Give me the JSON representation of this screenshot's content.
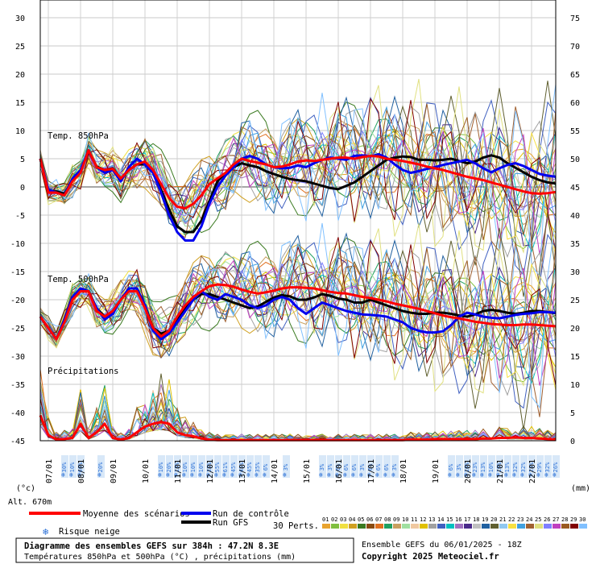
{
  "chart_data": {
    "type": "line",
    "dates": [
      "07/01",
      "08/01",
      "09/01",
      "10/01",
      "11/01",
      "12/01",
      "13/01",
      "14/01",
      "15/01",
      "16/01",
      "17/01",
      "18/01",
      "19/01",
      "20/01",
      "21/01",
      "22/01"
    ],
    "left_ticks": [
      "30",
      "25",
      "20",
      "15",
      "10",
      "5",
      "0",
      "-5",
      "-10",
      "-15",
      "-20",
      "-25",
      "-30",
      "-35",
      "-40",
      "-45"
    ],
    "right_ticks": [
      "75",
      "70",
      "65",
      "60",
      "55",
      "50",
      "45",
      "40",
      "35",
      "30",
      "25",
      "20",
      "15",
      "10",
      "5",
      "0"
    ],
    "left_unit": "(°c)",
    "right_unit": "(mm)",
    "altitude": "Alt. 670m",
    "panel_labels": {
      "t850": "Temp. 850hPa",
      "t500": "Temp. 500hPa",
      "precip": "Précipitations"
    },
    "series": [
      {
        "name": "Moyenne des scénarios",
        "panel": "t850",
        "color": "#ff0000",
        "x": [
          0,
          1,
          2,
          3,
          4,
          5,
          6,
          7,
          8,
          9,
          10,
          11,
          12,
          13,
          14,
          15,
          16,
          17,
          18,
          19,
          20,
          21,
          22,
          23,
          24,
          25,
          26,
          27,
          28,
          29,
          30,
          31,
          32,
          33,
          34,
          35,
          36,
          37,
          38,
          39,
          40,
          41,
          42,
          43,
          44,
          45,
          46,
          47,
          48,
          49,
          50,
          51,
          52,
          53,
          54,
          55,
          56,
          57,
          58,
          59,
          60,
          61,
          62,
          63,
          64
        ],
        "y": [
          5,
          -1,
          -1,
          -1.5,
          1,
          2.5,
          6.5,
          3.5,
          3,
          3.2,
          1.5,
          3,
          4,
          4.5,
          3,
          0.5,
          -2,
          -3.5,
          -3.8,
          -3,
          -1.5,
          0.5,
          1.5,
          2.5,
          4,
          5,
          4.6,
          4.3,
          4,
          3.5,
          3.6,
          4,
          4.5,
          4.7,
          4.6,
          4.8,
          5,
          5.2,
          5.2,
          5,
          5.3,
          5.5,
          5.4,
          5,
          4.8,
          4.6,
          4.3,
          4,
          3.6,
          3.3,
          3,
          2.6,
          2.2,
          1.8,
          1.5,
          1.2,
          0.8,
          0.4,
          0,
          -0.4,
          -0.8,
          -1.1,
          -1.2,
          -1.1,
          -0.9
        ]
      },
      {
        "name": "Run de contrôle",
        "panel": "t850",
        "color": "#0000ee",
        "x": [
          0,
          1,
          2,
          3,
          4,
          5,
          6,
          7,
          8,
          9,
          10,
          11,
          12,
          13,
          14,
          15,
          16,
          17,
          18,
          19,
          20,
          21,
          22,
          23,
          24,
          25,
          26,
          27,
          28,
          29,
          30,
          31,
          32,
          33,
          34,
          35,
          36,
          37,
          38,
          39,
          40,
          41,
          42,
          43,
          44,
          45,
          46,
          47,
          48,
          49,
          50,
          51,
          52,
          53,
          54,
          55,
          56,
          57,
          58,
          59,
          60,
          61,
          62,
          63,
          64
        ],
        "y": [
          5,
          -0.5,
          -1,
          -1.5,
          1.5,
          3,
          6.5,
          3.5,
          2.5,
          3,
          1,
          3.5,
          5,
          4,
          2.5,
          -1,
          -5,
          -8,
          -9.5,
          -9.5,
          -7,
          -3,
          0,
          2,
          3.5,
          5,
          5.5,
          5,
          4,
          3.5,
          3.3,
          3.4,
          3.8,
          3.5,
          4.2,
          4.8,
          5.2,
          5,
          4.8,
          5.5,
          5.6,
          5.4,
          5.8,
          5.2,
          4,
          3,
          2.5,
          2.8,
          3.2,
          3.5,
          3.9,
          4.2,
          4.5,
          4.8,
          4.2,
          3.3,
          2.6,
          3.3,
          3.9,
          4.2,
          3.7,
          3,
          2.3,
          2,
          1.8
        ]
      },
      {
        "name": "Run GFS",
        "panel": "t850",
        "color": "#000000",
        "x": [
          0,
          1,
          2,
          3,
          4,
          5,
          6,
          7,
          8,
          9,
          10,
          11,
          12,
          13,
          14,
          15,
          16,
          17,
          18,
          19,
          20,
          21,
          22,
          23,
          24,
          25,
          26,
          27,
          28,
          29,
          30,
          31,
          32,
          33,
          34,
          35,
          36,
          37,
          38,
          39,
          40,
          41,
          42,
          43,
          44,
          45,
          46,
          47,
          48,
          49,
          50,
          51,
          52,
          53,
          54,
          55,
          56,
          57,
          58,
          59,
          60,
          61,
          62,
          63,
          64
        ],
        "y": [
          5,
          -0.8,
          -0.8,
          -1.2,
          1.2,
          2.8,
          6.3,
          3.6,
          3,
          3.3,
          1.5,
          3,
          4,
          4,
          2.5,
          -0.5,
          -4,
          -7,
          -8,
          -8,
          -6,
          -2.5,
          1,
          2.5,
          3.5,
          4.2,
          3.8,
          3.5,
          2.8,
          2.3,
          1.8,
          1.4,
          1.2,
          1,
          0.6,
          0.2,
          -0.2,
          -0.4,
          0.2,
          0.8,
          1.8,
          2.8,
          3.8,
          4.8,
          5.2,
          5.4,
          5.3,
          4.8,
          4.8,
          4.7,
          4.8,
          5,
          4.6,
          4.2,
          4.5,
          5.2,
          5.6,
          5.2,
          4.2,
          3.4,
          2.6,
          1.8,
          1.2,
          0.8,
          0.6
        ]
      },
      {
        "name": "Moyenne des scénarios",
        "panel": "t500",
        "color": "#ff0000",
        "x": [
          0,
          1,
          2,
          3,
          4,
          5,
          6,
          7,
          8,
          9,
          10,
          11,
          12,
          13,
          14,
          15,
          16,
          17,
          18,
          19,
          20,
          21,
          22,
          23,
          24,
          25,
          26,
          27,
          28,
          29,
          30,
          31,
          32,
          33,
          34,
          35,
          36,
          37,
          38,
          39,
          40,
          41,
          42,
          43,
          44,
          45,
          46,
          47,
          48,
          49,
          50,
          51,
          52,
          53,
          54,
          55,
          56,
          57,
          58,
          59,
          60,
          61,
          62,
          63,
          64
        ],
        "y": [
          -23,
          -25,
          -27,
          -24,
          -20,
          -18.5,
          -18.5,
          -22,
          -23,
          -22,
          -20,
          -18.5,
          -18.5,
          -21.5,
          -25,
          -26.5,
          -25.5,
          -23,
          -21,
          -19.5,
          -18.5,
          -17.6,
          -17.3,
          -17.4,
          -17.7,
          -18.2,
          -18.6,
          -18.9,
          -18.7,
          -18.4,
          -18,
          -17.8,
          -17.8,
          -17.9,
          -18,
          -18.3,
          -18.6,
          -18.8,
          -18.9,
          -19.2,
          -19.5,
          -19.7,
          -20,
          -20.3,
          -20.7,
          -21,
          -21.3,
          -21.6,
          -22,
          -22.4,
          -22.8,
          -23.1,
          -23.3,
          -23.6,
          -23.9,
          -24.1,
          -24.3,
          -24.4,
          -24.5,
          -24.5,
          -24.4,
          -24.4,
          -24.5,
          -24.6,
          -24.7
        ]
      },
      {
        "name": "Run de contrôle",
        "panel": "t500",
        "color": "#0000ee",
        "x": [
          0,
          1,
          2,
          3,
          4,
          5,
          6,
          7,
          8,
          9,
          10,
          11,
          12,
          13,
          14,
          15,
          16,
          17,
          18,
          19,
          20,
          21,
          22,
          23,
          24,
          25,
          26,
          27,
          28,
          29,
          30,
          31,
          32,
          33,
          34,
          35,
          36,
          37,
          38,
          39,
          40,
          41,
          42,
          43,
          44,
          45,
          46,
          47,
          48,
          49,
          50,
          51,
          52,
          53,
          54,
          55,
          56,
          57,
          58,
          59,
          60,
          61,
          62,
          63,
          64
        ],
        "y": [
          -23,
          -25,
          -27,
          -23.5,
          -19.5,
          -18,
          -18.5,
          -21.5,
          -23.5,
          -22.5,
          -20,
          -18,
          -18,
          -21,
          -25.5,
          -27,
          -26,
          -24,
          -22,
          -20,
          -18.5,
          -19.5,
          -20,
          -19,
          -19.5,
          -20,
          -21,
          -21.5,
          -21,
          -20,
          -19.5,
          -20,
          -21.5,
          -22.5,
          -21.5,
          -20.5,
          -21,
          -21.5,
          -22,
          -22.3,
          -22.6,
          -22.7,
          -22.8,
          -23,
          -23.5,
          -24,
          -25,
          -25.5,
          -25.8,
          -25.8,
          -25.6,
          -24.5,
          -23,
          -22.3,
          -22.6,
          -23,
          -23.2,
          -23.3,
          -23,
          -22.7,
          -22.5,
          -22.4,
          -22.2,
          -22.2,
          -22.3
        ]
      },
      {
        "name": "Run GFS",
        "panel": "t500",
        "color": "#000000",
        "x": [
          0,
          1,
          2,
          3,
          4,
          5,
          6,
          7,
          8,
          9,
          10,
          11,
          12,
          13,
          14,
          15,
          16,
          17,
          18,
          19,
          20,
          21,
          22,
          23,
          24,
          25,
          26,
          27,
          28,
          29,
          30,
          31,
          32,
          33,
          34,
          35,
          36,
          37,
          38,
          39,
          40,
          41,
          42,
          43,
          44,
          45,
          46,
          47,
          48,
          49,
          50,
          51,
          52,
          53,
          54,
          55,
          56,
          57,
          58,
          59,
          60,
          61,
          62,
          63,
          64
        ],
        "y": [
          -23,
          -25,
          -27,
          -23.5,
          -19.5,
          -18,
          -18.5,
          -21.5,
          -23,
          -22,
          -20,
          -18,
          -18,
          -21,
          -25,
          -26,
          -25.5,
          -23.5,
          -21.5,
          -20,
          -19,
          -19,
          -19.5,
          -20,
          -20.5,
          -21,
          -21.5,
          -21.2,
          -20.4,
          -19.6,
          -19.2,
          -19.4,
          -20,
          -20,
          -19.6,
          -19,
          -19.3,
          -19.8,
          -20,
          -20.5,
          -20.5,
          -20,
          -20.5,
          -21,
          -21.5,
          -22,
          -22.3,
          -22.5,
          -22.5,
          -22.3,
          -22.3,
          -22.5,
          -22.8,
          -23,
          -22.6,
          -22,
          -21.8,
          -22,
          -22.3,
          -22.5,
          -22.3,
          -22,
          -22,
          -22.2,
          -22.4
        ]
      },
      {
        "name": "Moyenne des scénarios",
        "panel": "precip",
        "color": "#ff0000",
        "x": [
          0,
          1,
          2,
          3,
          4,
          5,
          6,
          7,
          8,
          9,
          10,
          11,
          12,
          13,
          14,
          15,
          16,
          17,
          18,
          19,
          20,
          21,
          22,
          23,
          24,
          25,
          26,
          27,
          28,
          29,
          30,
          31,
          32,
          33,
          34,
          35,
          36,
          37,
          38,
          39,
          40,
          41,
          42,
          43,
          44,
          45,
          46,
          47,
          48,
          49,
          50,
          51,
          52,
          53,
          54,
          55,
          56,
          57,
          58,
          59,
          60,
          61,
          62,
          63,
          64
        ],
        "y": [
          4.5,
          1,
          0.2,
          0.3,
          0.5,
          3,
          0.5,
          1.5,
          3,
          0.5,
          0.2,
          0.5,
          1.5,
          2.5,
          3,
          3.3,
          3,
          1.5,
          1,
          0.8,
          0.4,
          0.2,
          0.1,
          0.1,
          0.1,
          0.1,
          0.1,
          0.1,
          0.1,
          0.1,
          0.1,
          0.1,
          0.1,
          0.1,
          0.1,
          0.1,
          0.1,
          0.1,
          0.1,
          0.1,
          0.1,
          0.1,
          0.1,
          0.1,
          0.1,
          0.1,
          0.2,
          0.2,
          0.2,
          0.3,
          0.3,
          0.3,
          0.3,
          0.3,
          0.3,
          0.4,
          0.4,
          0.5,
          0.5,
          0.6,
          0.5,
          0.5,
          0.4,
          0.3,
          0.2
        ]
      }
    ],
    "perturbation_colors": [
      "#e8a32e",
      "#7fbf3f",
      "#f0e040",
      "#d0a020",
      "#3a7a20",
      "#8a4a10",
      "#e07020",
      "#20a060",
      "#c8a060",
      "#a0e0a0",
      "#f0c8a0",
      "#e0c000",
      "#a0a0a0",
      "#4060c0",
      "#00c0c0",
      "#a070c0",
      "#4a2a8a",
      "#c0c0c0",
      "#2060a0",
      "#606030",
      "#90c8f0",
      "#f8e040",
      "#40a0e0",
      "#a06030",
      "#e0e080",
      "#8080ff",
      "#c040c0",
      "#9a5a20",
      "#800000",
      "#80c0ff"
    ],
    "snow_risk": [
      {
        "x": 3,
        "label": "30%"
      },
      {
        "x": 4,
        "label": "10%"
      },
      {
        "x": 5,
        "label": "60%"
      },
      {
        "x": 7.5,
        "label": "20%"
      },
      {
        "x": 15,
        "label": "10%"
      },
      {
        "x": 16,
        "label": "20%"
      },
      {
        "x": 17,
        "label": "13%"
      },
      {
        "x": 18,
        "label": "10%"
      },
      {
        "x": 19,
        "label": "10%"
      },
      {
        "x": 20,
        "label": "10%"
      },
      {
        "x": 21,
        "label": "32%"
      },
      {
        "x": 22,
        "label": "55%"
      },
      {
        "x": 23,
        "label": "61%"
      },
      {
        "x": 24,
        "label": "45%"
      },
      {
        "x": 25,
        "label": "45%"
      },
      {
        "x": 26,
        "label": "45%"
      },
      {
        "x": 27,
        "label": "35%"
      },
      {
        "x": 28,
        "label": "6%"
      },
      {
        "x": 30.5,
        "label": "3%"
      },
      {
        "x": 35,
        "label": "3%"
      },
      {
        "x": 36,
        "label": "3%"
      },
      {
        "x": 37,
        "label": "6%"
      },
      {
        "x": 38,
        "label": "6%"
      },
      {
        "x": 39,
        "label": "6%"
      },
      {
        "x": 40,
        "label": "3%"
      },
      {
        "x": 41,
        "label": "6%"
      },
      {
        "x": 42,
        "label": "6%"
      },
      {
        "x": 43,
        "label": "6%"
      },
      {
        "x": 44,
        "label": "3%"
      },
      {
        "x": 51,
        "label": "6%"
      },
      {
        "x": 52,
        "label": "3%"
      },
      {
        "x": 53,
        "label": "10%"
      },
      {
        "x": 54,
        "label": "23%"
      },
      {
        "x": 55,
        "label": "13%"
      },
      {
        "x": 56,
        "label": "10%"
      },
      {
        "x": 57,
        "label": "19%"
      },
      {
        "x": 58,
        "label": "13%"
      },
      {
        "x": 59,
        "label": "32%"
      },
      {
        "x": 60,
        "label": "32%"
      },
      {
        "x": 61,
        "label": "23%"
      },
      {
        "x": 62,
        "label": "29%"
      },
      {
        "x": 63,
        "label": "32%"
      },
      {
        "x": 64,
        "label": "26%"
      }
    ]
  },
  "legend": {
    "mean": "Moyenne des scénarios",
    "control": "Run de contrôle",
    "gfs": "Run GFS",
    "snow": "Risque neige",
    "perts": "30 Perts.",
    "pert_numbers": [
      "01",
      "02",
      "03",
      "04",
      "05",
      "06",
      "07",
      "08",
      "09",
      "10",
      "11",
      "12",
      "13",
      "14",
      "15",
      "16",
      "17",
      "18",
      "19",
      "20",
      "21",
      "22",
      "23",
      "24",
      "25",
      "26",
      "27",
      "28",
      "29",
      "30"
    ]
  },
  "footer": {
    "title": "Diagramme des ensembles GEFS sur 384h : 47.2N 8.3E",
    "subtitle": "Températures 850hPa et 500hPa (°C) , précipitations (mm)",
    "run": "Ensemble GEFS du 06/01/2025 - 18Z",
    "copyright": "Copyright 2025 Meteociel.fr"
  }
}
